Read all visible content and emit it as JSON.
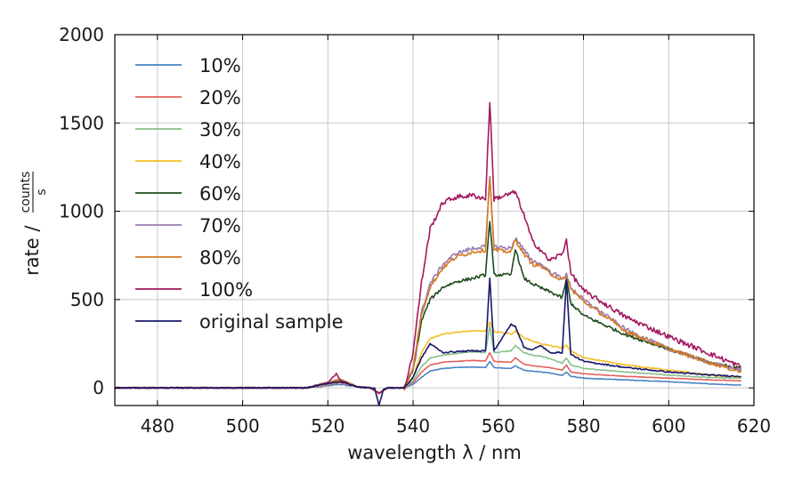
{
  "chart_data": {
    "type": "line",
    "title": "",
    "xlabel": "wavelength λ / nm",
    "ylabel": {
      "prefix": "rate /",
      "numerator": "counts",
      "denominator": "s"
    },
    "xlim": [
      470,
      620
    ],
    "ylim": [
      -100,
      2000
    ],
    "xticks": [
      480,
      500,
      520,
      540,
      560,
      580,
      600,
      620
    ],
    "yticks": [
      0,
      500,
      1000,
      1500,
      2000
    ],
    "grid": true,
    "legend_position": "top-left",
    "legend": [
      "10%",
      "20%",
      "30%",
      "40%",
      "60%",
      "70%",
      "80%",
      "100%",
      "original sample"
    ],
    "series": [
      {
        "name": "10%",
        "color": "#4a83c4",
        "scale": 0.11,
        "points": [
          [
            470,
            0
          ],
          [
            515,
            0
          ],
          [
            523,
            20
          ],
          [
            527,
            5
          ],
          [
            530,
            0
          ],
          [
            532,
            -30
          ],
          [
            534,
            0
          ],
          [
            538,
            0
          ],
          [
            540,
            20
          ],
          [
            542,
            60
          ],
          [
            544,
            95
          ],
          [
            547,
            110
          ],
          [
            550,
            115
          ],
          [
            554,
            118
          ],
          [
            557,
            115
          ],
          [
            558,
            150
          ],
          [
            559,
            115
          ],
          [
            563,
            110
          ],
          [
            564,
            125
          ],
          [
            566,
            100
          ],
          [
            568,
            95
          ],
          [
            570,
            90
          ],
          [
            572,
            85
          ],
          [
            575,
            70
          ],
          [
            576,
            90
          ],
          [
            577,
            65
          ],
          [
            580,
            55
          ],
          [
            590,
            45
          ],
          [
            600,
            35
          ],
          [
            610,
            22
          ],
          [
            617,
            15
          ]
        ]
      },
      {
        "name": "20%",
        "color": "#e0625c",
        "scale": 0.12,
        "points": [
          [
            470,
            0
          ],
          [
            515,
            0
          ],
          [
            523,
            30
          ],
          [
            527,
            5
          ],
          [
            530,
            0
          ],
          [
            532,
            -30
          ],
          [
            534,
            0
          ],
          [
            538,
            0
          ],
          [
            540,
            30
          ],
          [
            542,
            90
          ],
          [
            544,
            130
          ],
          [
            547,
            145
          ],
          [
            550,
            150
          ],
          [
            554,
            155
          ],
          [
            557,
            152
          ],
          [
            558,
            200
          ],
          [
            559,
            150
          ],
          [
            563,
            145
          ],
          [
            564,
            170
          ],
          [
            566,
            135
          ],
          [
            568,
            125
          ],
          [
            570,
            120
          ],
          [
            572,
            115
          ],
          [
            575,
            100
          ],
          [
            576,
            130
          ],
          [
            577,
            90
          ],
          [
            580,
            80
          ],
          [
            590,
            65
          ],
          [
            600,
            55
          ],
          [
            610,
            45
          ],
          [
            617,
            40
          ]
        ]
      },
      {
        "name": "30%",
        "color": "#88c08a",
        "scale": 0.2,
        "points": [
          [
            470,
            0
          ],
          [
            515,
            0
          ],
          [
            523,
            35
          ],
          [
            527,
            5
          ],
          [
            530,
            0
          ],
          [
            532,
            -30
          ],
          [
            534,
            0
          ],
          [
            538,
            0
          ],
          [
            540,
            40
          ],
          [
            542,
            120
          ],
          [
            544,
            170
          ],
          [
            547,
            185
          ],
          [
            550,
            195
          ],
          [
            554,
            205
          ],
          [
            557,
            200
          ],
          [
            558,
            350
          ],
          [
            559,
            200
          ],
          [
            563,
            210
          ],
          [
            564,
            240
          ],
          [
            566,
            200
          ],
          [
            568,
            185
          ],
          [
            570,
            180
          ],
          [
            572,
            165
          ],
          [
            575,
            140
          ],
          [
            576,
            170
          ],
          [
            577,
            130
          ],
          [
            580,
            110
          ],
          [
            590,
            90
          ],
          [
            600,
            72
          ],
          [
            610,
            58
          ],
          [
            617,
            55
          ]
        ]
      },
      {
        "name": "40%",
        "color": "#f7bd24",
        "scale": 0.3,
        "points": [
          [
            470,
            0
          ],
          [
            515,
            0
          ],
          [
            523,
            40
          ],
          [
            527,
            5
          ],
          [
            530,
            0
          ],
          [
            532,
            -30
          ],
          [
            534,
            0
          ],
          [
            538,
            0
          ],
          [
            540,
            60
          ],
          [
            542,
            200
          ],
          [
            544,
            280
          ],
          [
            547,
            305
          ],
          [
            550,
            315
          ],
          [
            554,
            322
          ],
          [
            557,
            322
          ],
          [
            558,
            370
          ],
          [
            559,
            320
          ],
          [
            563,
            305
          ],
          [
            564,
            320
          ],
          [
            566,
            285
          ],
          [
            568,
            265
          ],
          [
            570,
            250
          ],
          [
            572,
            240
          ],
          [
            575,
            225
          ],
          [
            576,
            240
          ],
          [
            577,
            210
          ],
          [
            580,
            170
          ],
          [
            590,
            130
          ],
          [
            600,
            100
          ],
          [
            610,
            72
          ],
          [
            617,
            60
          ]
        ]
      },
      {
        "name": "60%",
        "color": "#1d4d1d",
        "scale": 0.8,
        "points": [
          [
            470,
            0
          ],
          [
            515,
            0
          ],
          [
            523,
            45
          ],
          [
            527,
            5
          ],
          [
            530,
            0
          ],
          [
            532,
            -30
          ],
          [
            534,
            0
          ],
          [
            538,
            0
          ],
          [
            540,
            100
          ],
          [
            542,
            380
          ],
          [
            544,
            500
          ],
          [
            547,
            570
          ],
          [
            550,
            600
          ],
          [
            554,
            620
          ],
          [
            557,
            640
          ],
          [
            558,
            950
          ],
          [
            559,
            640
          ],
          [
            563,
            640
          ],
          [
            564,
            790
          ],
          [
            566,
            620
          ],
          [
            568,
            590
          ],
          [
            570,
            565
          ],
          [
            572,
            545
          ],
          [
            575,
            510
          ],
          [
            576,
            620
          ],
          [
            577,
            480
          ],
          [
            580,
            410
          ],
          [
            590,
            300
          ],
          [
            600,
            220
          ],
          [
            610,
            140
          ],
          [
            617,
            110
          ]
        ]
      },
      {
        "name": "70%",
        "color": "#9a7ab3",
        "scale": 1.0,
        "points": [
          [
            470,
            0
          ],
          [
            515,
            0
          ],
          [
            523,
            48
          ],
          [
            527,
            5
          ],
          [
            530,
            0
          ],
          [
            532,
            -30
          ],
          [
            534,
            0
          ],
          [
            538,
            0
          ],
          [
            540,
            110
          ],
          [
            542,
            430
          ],
          [
            544,
            590
          ],
          [
            547,
            700
          ],
          [
            550,
            760
          ],
          [
            554,
            790
          ],
          [
            557,
            800
          ],
          [
            558,
            1190
          ],
          [
            559,
            800
          ],
          [
            563,
            790
          ],
          [
            564,
            850
          ],
          [
            566,
            780
          ],
          [
            568,
            720
          ],
          [
            570,
            700
          ],
          [
            572,
            660
          ],
          [
            575,
            620
          ],
          [
            576,
            640
          ],
          [
            577,
            570
          ],
          [
            580,
            500
          ],
          [
            590,
            330
          ],
          [
            600,
            220
          ],
          [
            610,
            140
          ],
          [
            617,
            100
          ]
        ]
      },
      {
        "name": "80%",
        "color": "#d37a22",
        "scale": 1.0,
        "points": [
          [
            470,
            0
          ],
          [
            515,
            0
          ],
          [
            523,
            50
          ],
          [
            527,
            5
          ],
          [
            530,
            0
          ],
          [
            532,
            -30
          ],
          [
            534,
            0
          ],
          [
            538,
            0
          ],
          [
            540,
            110
          ],
          [
            542,
            420
          ],
          [
            544,
            570
          ],
          [
            547,
            680
          ],
          [
            550,
            740
          ],
          [
            554,
            770
          ],
          [
            557,
            780
          ],
          [
            558,
            1200
          ],
          [
            559,
            780
          ],
          [
            563,
            770
          ],
          [
            564,
            840
          ],
          [
            566,
            760
          ],
          [
            568,
            700
          ],
          [
            570,
            690
          ],
          [
            572,
            650
          ],
          [
            575,
            610
          ],
          [
            576,
            630
          ],
          [
            577,
            560
          ],
          [
            580,
            490
          ],
          [
            590,
            320
          ],
          [
            600,
            220
          ],
          [
            610,
            140
          ],
          [
            617,
            90
          ]
        ]
      },
      {
        "name": "100%",
        "color": "#a3185e",
        "scale": 1.3,
        "points": [
          [
            470,
            0
          ],
          [
            515,
            0
          ],
          [
            520,
            30
          ],
          [
            522,
            80
          ],
          [
            523,
            40
          ],
          [
            527,
            5
          ],
          [
            530,
            0
          ],
          [
            532,
            -30
          ],
          [
            534,
            0
          ],
          [
            538,
            0
          ],
          [
            540,
            200
          ],
          [
            542,
            600
          ],
          [
            544,
            900
          ],
          [
            547,
            1050
          ],
          [
            550,
            1080
          ],
          [
            554,
            1090
          ],
          [
            557,
            1070
          ],
          [
            558,
            1620
          ],
          [
            559,
            1070
          ],
          [
            563,
            1100
          ],
          [
            564,
            1110
          ],
          [
            566,
            980
          ],
          [
            568,
            830
          ],
          [
            570,
            780
          ],
          [
            572,
            720
          ],
          [
            575,
            760
          ],
          [
            576,
            840
          ],
          [
            577,
            650
          ],
          [
            580,
            550
          ],
          [
            590,
            400
          ],
          [
            600,
            290
          ],
          [
            610,
            190
          ],
          [
            617,
            120
          ]
        ]
      },
      {
        "name": "original sample",
        "color": "#17186b",
        "scale": 0.35,
        "points": [
          [
            470,
            0
          ],
          [
            515,
            0
          ],
          [
            521,
            30
          ],
          [
            523,
            35
          ],
          [
            527,
            5
          ],
          [
            530,
            0
          ],
          [
            531,
            0
          ],
          [
            532,
            -100
          ],
          [
            533,
            -10
          ],
          [
            534,
            0
          ],
          [
            538,
            0
          ],
          [
            540,
            60
          ],
          [
            542,
            170
          ],
          [
            544,
            250
          ],
          [
            547,
            200
          ],
          [
            550,
            205
          ],
          [
            554,
            210
          ],
          [
            557,
            210
          ],
          [
            558,
            620
          ],
          [
            559,
            210
          ],
          [
            563,
            360
          ],
          [
            564,
            350
          ],
          [
            566,
            230
          ],
          [
            568,
            215
          ],
          [
            570,
            240
          ],
          [
            572,
            200
          ],
          [
            575,
            200
          ],
          [
            576,
            610
          ],
          [
            577,
            190
          ],
          [
            580,
            150
          ],
          [
            590,
            115
          ],
          [
            600,
            90
          ],
          [
            610,
            72
          ],
          [
            617,
            65
          ]
        ]
      }
    ]
  }
}
